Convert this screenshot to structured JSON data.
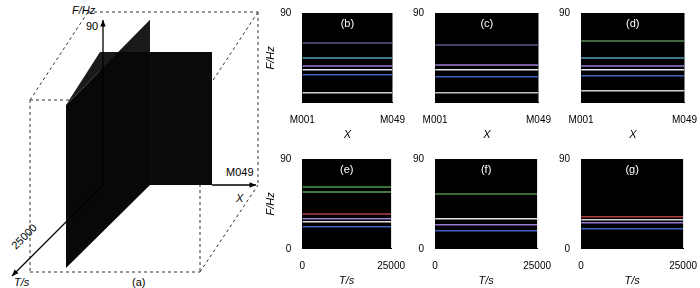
{
  "panel_a": {
    "label": "(a)",
    "f_axis": {
      "label": "F/Hz",
      "end": 90
    },
    "x_axis": {
      "label": "X",
      "end": "M049"
    },
    "t_axis": {
      "label": "T/s",
      "end": 25000
    }
  },
  "chart_data": [
    {
      "type": "line",
      "title": "(b)",
      "x_label": "X",
      "y_label": "F/Hz",
      "x": [
        1,
        49
      ],
      "xlim": [
        1,
        49
      ],
      "xticks": [
        {
          "value": 1,
          "label": "M001"
        },
        {
          "value": 49,
          "label": "M049"
        }
      ],
      "ylim": [
        0,
        90
      ],
      "yticks": [
        90
      ],
      "grid": false,
      "series": [
        {
          "color": "#5a5a8a",
          "values": [
            60,
            60
          ]
        },
        {
          "color": "#4fa0b0",
          "values": [
            45,
            45
          ]
        },
        {
          "color": "#9a7ad0",
          "values": [
            37,
            37
          ]
        },
        {
          "color": "#e6e6e6",
          "values": [
            33,
            33
          ]
        },
        {
          "color": "#4060c0",
          "values": [
            28,
            28
          ]
        },
        {
          "color": "#d0d0d0",
          "values": [
            10,
            10
          ]
        }
      ]
    },
    {
      "type": "line",
      "title": "(c)",
      "x_label": "X",
      "x": [
        1,
        49
      ],
      "xlim": [
        1,
        49
      ],
      "xticks": [
        {
          "value": 1,
          "label": "M001"
        },
        {
          "value": 49,
          "label": "M049"
        }
      ],
      "ylim": [
        0,
        90
      ],
      "yticks": [
        90
      ],
      "grid": false,
      "series": [
        {
          "color": "#5a5a8a",
          "values": [
            58,
            58
          ]
        },
        {
          "color": "#9a7ad0",
          "values": [
            38,
            38
          ]
        },
        {
          "color": "#e6e6e6",
          "values": [
            33,
            33
          ]
        },
        {
          "color": "#4060c0",
          "values": [
            26,
            26
          ]
        },
        {
          "color": "#c0c0c0",
          "values": [
            10,
            10
          ]
        }
      ]
    },
    {
      "type": "line",
      "title": "(d)",
      "x_label": "X",
      "x": [
        1,
        49
      ],
      "xlim": [
        1,
        49
      ],
      "xticks": [
        {
          "value": 1,
          "label": "M001"
        },
        {
          "value": 49,
          "label": "M049"
        }
      ],
      "ylim": [
        0,
        90
      ],
      "yticks": [
        90
      ],
      "grid": false,
      "series": [
        {
          "color": "#5a8a5a",
          "values": [
            62,
            62
          ]
        },
        {
          "color": "#4fa0b0",
          "values": [
            45,
            45
          ]
        },
        {
          "color": "#9a7ad0",
          "values": [
            37,
            37
          ]
        },
        {
          "color": "#e6e6e6",
          "values": [
            33,
            33
          ]
        },
        {
          "color": "#4060c0",
          "values": [
            27,
            27
          ]
        },
        {
          "color": "#d0d0d0",
          "values": [
            12,
            12
          ]
        }
      ]
    },
    {
      "type": "line",
      "title": "(e)",
      "x_label": "T/s",
      "y_label": "F/Hz",
      "x": [
        0,
        25000
      ],
      "xlim": [
        0,
        25000
      ],
      "xticks": [
        0,
        25000
      ],
      "ylim": [
        0,
        90
      ],
      "yticks": [
        0,
        90
      ],
      "grid": false,
      "series": [
        {
          "color": "#4f9a4f",
          "values": [
            62,
            62
          ]
        },
        {
          "color": "#5aa05a",
          "values": [
            57,
            57
          ]
        },
        {
          "color": "#b04040",
          "values": [
            35,
            35
          ]
        },
        {
          "color": "#9a7ad0",
          "values": [
            30,
            30
          ]
        },
        {
          "color": "#e0e0e0",
          "values": [
            27,
            27
          ]
        },
        {
          "color": "#4060c0",
          "values": [
            22,
            22
          ]
        }
      ]
    },
    {
      "type": "line",
      "title": "(f)",
      "x_label": "T/s",
      "x": [
        0,
        25000
      ],
      "xlim": [
        0,
        25000
      ],
      "xticks": [
        0,
        25000
      ],
      "ylim": [
        0,
        90
      ],
      "yticks": [
        0,
        90
      ],
      "grid": false,
      "series": [
        {
          "color": "#4f8a4f",
          "values": [
            55,
            55
          ]
        },
        {
          "color": "#e6e6e6",
          "values": [
            30,
            30
          ]
        },
        {
          "color": "#9a7ad0",
          "values": [
            24,
            24
          ]
        },
        {
          "color": "#4060c0",
          "values": [
            18,
            18
          ]
        }
      ]
    },
    {
      "type": "line",
      "title": "(g)",
      "x_label": "T/s",
      "x": [
        0,
        25000
      ],
      "xlim": [
        0,
        25000
      ],
      "xticks": [
        0,
        25000
      ],
      "ylim": [
        0,
        90
      ],
      "yticks": [
        0,
        90
      ],
      "grid": false,
      "series": [
        {
          "color": "#b04040",
          "values": [
            32,
            32
          ]
        },
        {
          "color": "#d0d0d0",
          "values": [
            29,
            29
          ]
        },
        {
          "color": "#9a7ad0",
          "values": [
            26,
            26
          ]
        },
        {
          "color": "#4060c0",
          "values": [
            20,
            20
          ]
        }
      ]
    }
  ]
}
